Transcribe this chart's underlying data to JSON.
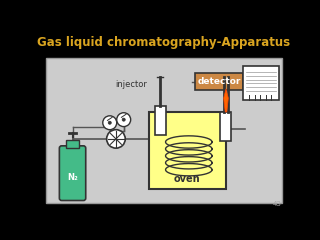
{
  "title": "Gas liquid chromatography-Apparatus",
  "title_color": "#DAA520",
  "bg_color": "#000000",
  "panel_bg": "#CCCCCC",
  "page_number": "43",
  "oven_color": "#FFFF88",
  "oven_label": "oven",
  "injector_label": "injector",
  "detector_label": "detector",
  "n2_label": "N₂",
  "detector_box_color": "#CC8844",
  "recorder_box_color": "#FFFFFF",
  "line_color": "#555555",
  "dark": "#333333"
}
